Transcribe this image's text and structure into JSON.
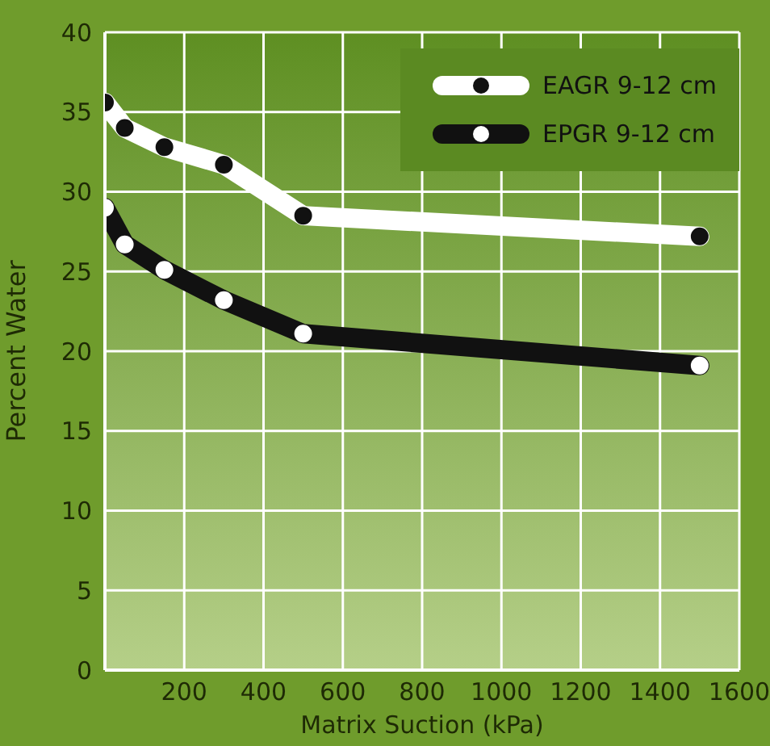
{
  "chart_data": {
    "type": "line",
    "xlabel": "Matrix Suction (kPa)",
    "ylabel": "Percent Water",
    "x": [
      0,
      50,
      150,
      300,
      500,
      1500
    ],
    "series": [
      {
        "name": "EAGR 9-12 cm",
        "color": "#ffffff",
        "values": [
          35.6,
          34,
          32.8,
          31.7,
          28.5,
          27.2
        ]
      },
      {
        "name": "EPGR 9-12 cm",
        "color": "#111111",
        "values": [
          29,
          26.7,
          25.1,
          23.2,
          21.1,
          19.1
        ]
      }
    ],
    "xlim": [
      0,
      1600
    ],
    "xticks": [
      200,
      400,
      600,
      800,
      1000,
      1200,
      1400,
      1600
    ],
    "ylim": [
      0,
      40
    ],
    "yticks": [
      0,
      5,
      10,
      15,
      20,
      25,
      30,
      35,
      40
    ],
    "grid": true,
    "legend": "top right",
    "marker": "circle",
    "line_style": "solid"
  }
}
